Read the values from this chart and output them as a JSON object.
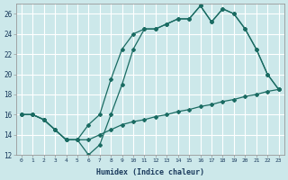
{
  "xlabel": "Humidex (Indice chaleur)",
  "xlim": [
    -0.5,
    23.5
  ],
  "ylim": [
    12,
    27
  ],
  "yticks": [
    12,
    14,
    16,
    18,
    20,
    22,
    24,
    26
  ],
  "xticks": [
    0,
    1,
    2,
    3,
    4,
    5,
    6,
    7,
    8,
    9,
    10,
    11,
    12,
    13,
    14,
    15,
    16,
    17,
    18,
    19,
    20,
    21,
    22,
    23
  ],
  "bg_color": "#cce8ea",
  "grid_color": "#ffffff",
  "line_color": "#1a6b62",
  "line1_x": [
    0,
    1,
    2,
    3,
    4,
    5,
    6,
    7,
    8,
    9,
    10,
    11,
    12,
    13,
    14,
    15,
    16,
    17,
    18,
    19,
    20,
    21,
    22,
    23
  ],
  "line1_y": [
    16,
    16,
    15.5,
    14.5,
    13.5,
    13.5,
    15,
    16,
    19.5,
    22.5,
    24,
    24.5,
    24.5,
    25.0,
    25.5,
    25.5,
    26.8,
    25.2,
    26.5,
    26.0,
    24.5,
    22.5,
    20.0,
    18.5
  ],
  "line2_x": [
    0,
    1,
    2,
    3,
    4,
    5,
    6,
    7,
    8,
    9,
    10,
    11,
    12,
    13,
    14,
    15,
    16,
    17,
    18,
    19,
    20,
    21,
    22,
    23
  ],
  "line2_y": [
    16,
    16,
    15.5,
    14.5,
    13.5,
    13.5,
    13.5,
    14.0,
    14.5,
    15.0,
    15.3,
    15.5,
    15.8,
    16.0,
    16.3,
    16.5,
    16.8,
    17.0,
    17.3,
    17.5,
    17.8,
    18.0,
    18.3,
    18.5
  ],
  "line3_x": [
    0,
    1,
    2,
    3,
    4,
    5,
    6,
    7,
    8,
    9,
    10,
    11,
    12,
    13,
    14,
    15,
    16,
    17,
    18,
    19,
    20,
    21,
    22,
    23
  ],
  "line3_y": [
    16,
    16,
    15.5,
    14.5,
    13.5,
    13.5,
    12.0,
    13.0,
    16.0,
    19.0,
    22.5,
    24.5,
    24.5,
    25.0,
    25.5,
    25.5,
    26.8,
    25.2,
    26.5,
    26.0,
    24.5,
    22.5,
    20.0,
    18.5
  ]
}
